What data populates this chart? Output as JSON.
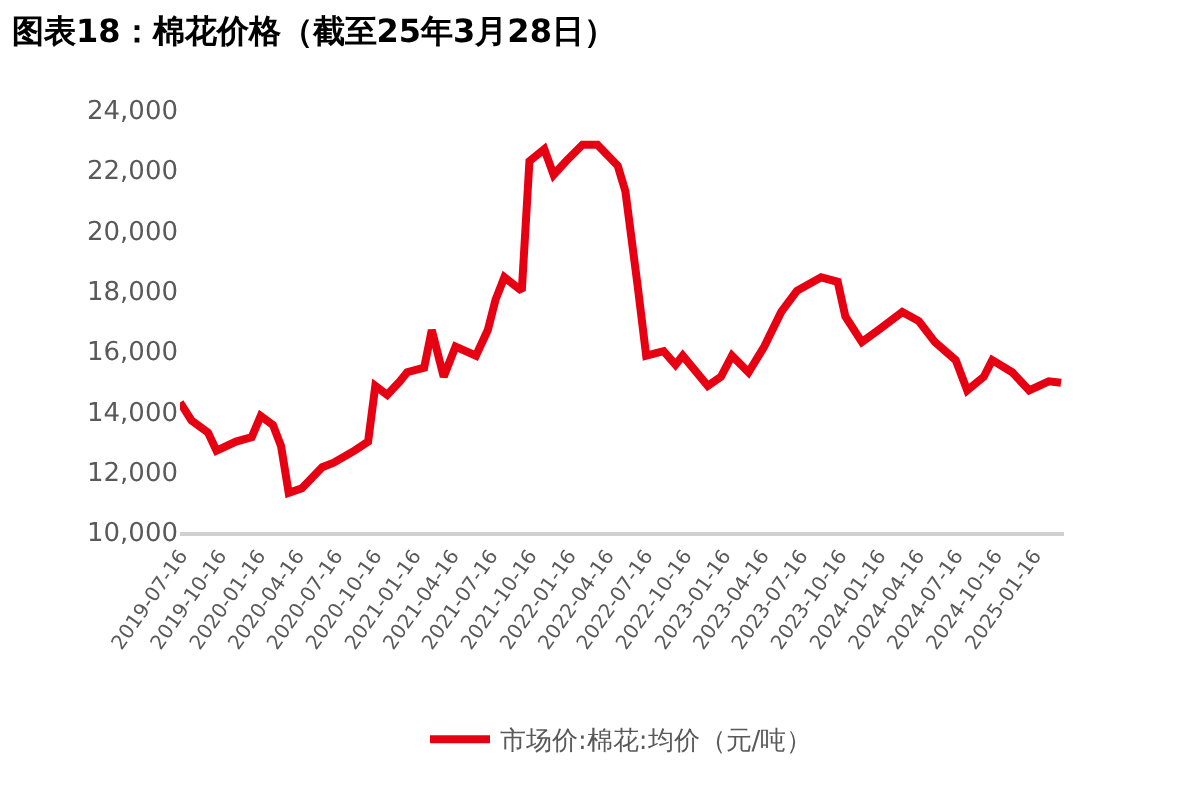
{
  "chart_data": {
    "type": "line",
    "title": "图表18：棉花价格（截至25年3月28日）",
    "x": [
      "2019-07-16",
      "2019-08-12",
      "2019-09-20",
      "2019-10-10",
      "2019-11-25",
      "2020-01-01",
      "2020-01-22",
      "2020-02-20",
      "2020-03-10",
      "2020-03-28",
      "2020-04-28",
      "2020-06-15",
      "2020-07-12",
      "2020-08-30",
      "2020-10-01",
      "2020-10-18",
      "2020-11-15",
      "2020-12-15",
      "2021-01-01",
      "2021-02-10",
      "2021-02-28",
      "2021-03-28",
      "2021-04-25",
      "2021-06-12",
      "2021-07-10",
      "2021-07-28",
      "2021-08-18",
      "2021-09-28",
      "2021-10-16",
      "2021-11-20",
      "2021-12-12",
      "2022-01-10",
      "2022-02-18",
      "2022-03-25",
      "2022-05-12",
      "2022-05-30",
      "2022-06-28",
      "2022-07-18",
      "2022-08-28",
      "2022-09-25",
      "2022-10-12",
      "2022-12-10",
      "2023-01-10",
      "2023-02-05",
      "2023-03-16",
      "2023-04-22",
      "2023-06-01",
      "2023-07-08",
      "2023-09-03",
      "2023-10-12",
      "2023-10-30",
      "2023-12-08",
      "2024-01-16",
      "2024-03-12",
      "2024-04-20",
      "2024-05-28",
      "2024-07-16",
      "2024-08-12",
      "2024-09-20",
      "2024-10-10",
      "2024-11-26",
      "2025-01-05",
      "2025-02-20",
      "2025-03-21"
    ],
    "series": [
      {
        "name": "市场价:棉花:均价（元/吨）",
        "color": "#e60012",
        "values": [
          14300,
          13700,
          13300,
          12700,
          13000,
          13150,
          13850,
          13550,
          12850,
          11300,
          11450,
          12150,
          12300,
          12700,
          13000,
          14850,
          14550,
          15000,
          15300,
          15450,
          16700,
          15150,
          16150,
          15850,
          16700,
          17700,
          18450,
          18000,
          22300,
          22700,
          21850,
          22300,
          22850,
          22850,
          22150,
          21300,
          18150,
          15850,
          16000,
          15550,
          15850,
          14850,
          15150,
          15850,
          15300,
          16150,
          17300,
          18000,
          18450,
          18300,
          17150,
          16300,
          16700,
          17300,
          17000,
          16300,
          15700,
          14700,
          15150,
          15700,
          15300,
          14700,
          15000,
          14950
        ]
      }
    ],
    "xlim": [
      "2019-07-16",
      "2025-03-28"
    ],
    "xticks": [
      "2019-07-16",
      "2019-10-16",
      "2020-01-16",
      "2020-04-16",
      "2020-07-16",
      "2020-10-16",
      "2021-01-16",
      "2021-04-16",
      "2021-07-16",
      "2021-10-16",
      "2022-01-16",
      "2022-04-16",
      "2022-07-16",
      "2022-10-16",
      "2023-01-16",
      "2023-04-16",
      "2023-07-16",
      "2023-10-16",
      "2024-01-16",
      "2024-04-16",
      "2024-07-16",
      "2024-10-16",
      "2025-01-16"
    ],
    "ylim": [
      10000,
      24000
    ],
    "yticks": [
      {
        "value": 10000,
        "label": "10,000"
      },
      {
        "value": 12000,
        "label": "12,000"
      },
      {
        "value": 14000,
        "label": "14,000"
      },
      {
        "value": 16000,
        "label": "16,000"
      },
      {
        "value": 18000,
        "label": "18,000"
      },
      {
        "value": 20000,
        "label": "20,000"
      },
      {
        "value": 22000,
        "label": "22,000"
      },
      {
        "value": 24000,
        "label": "24,000"
      }
    ],
    "legend": "bottom",
    "marker": "none",
    "line_style": "solid"
  }
}
